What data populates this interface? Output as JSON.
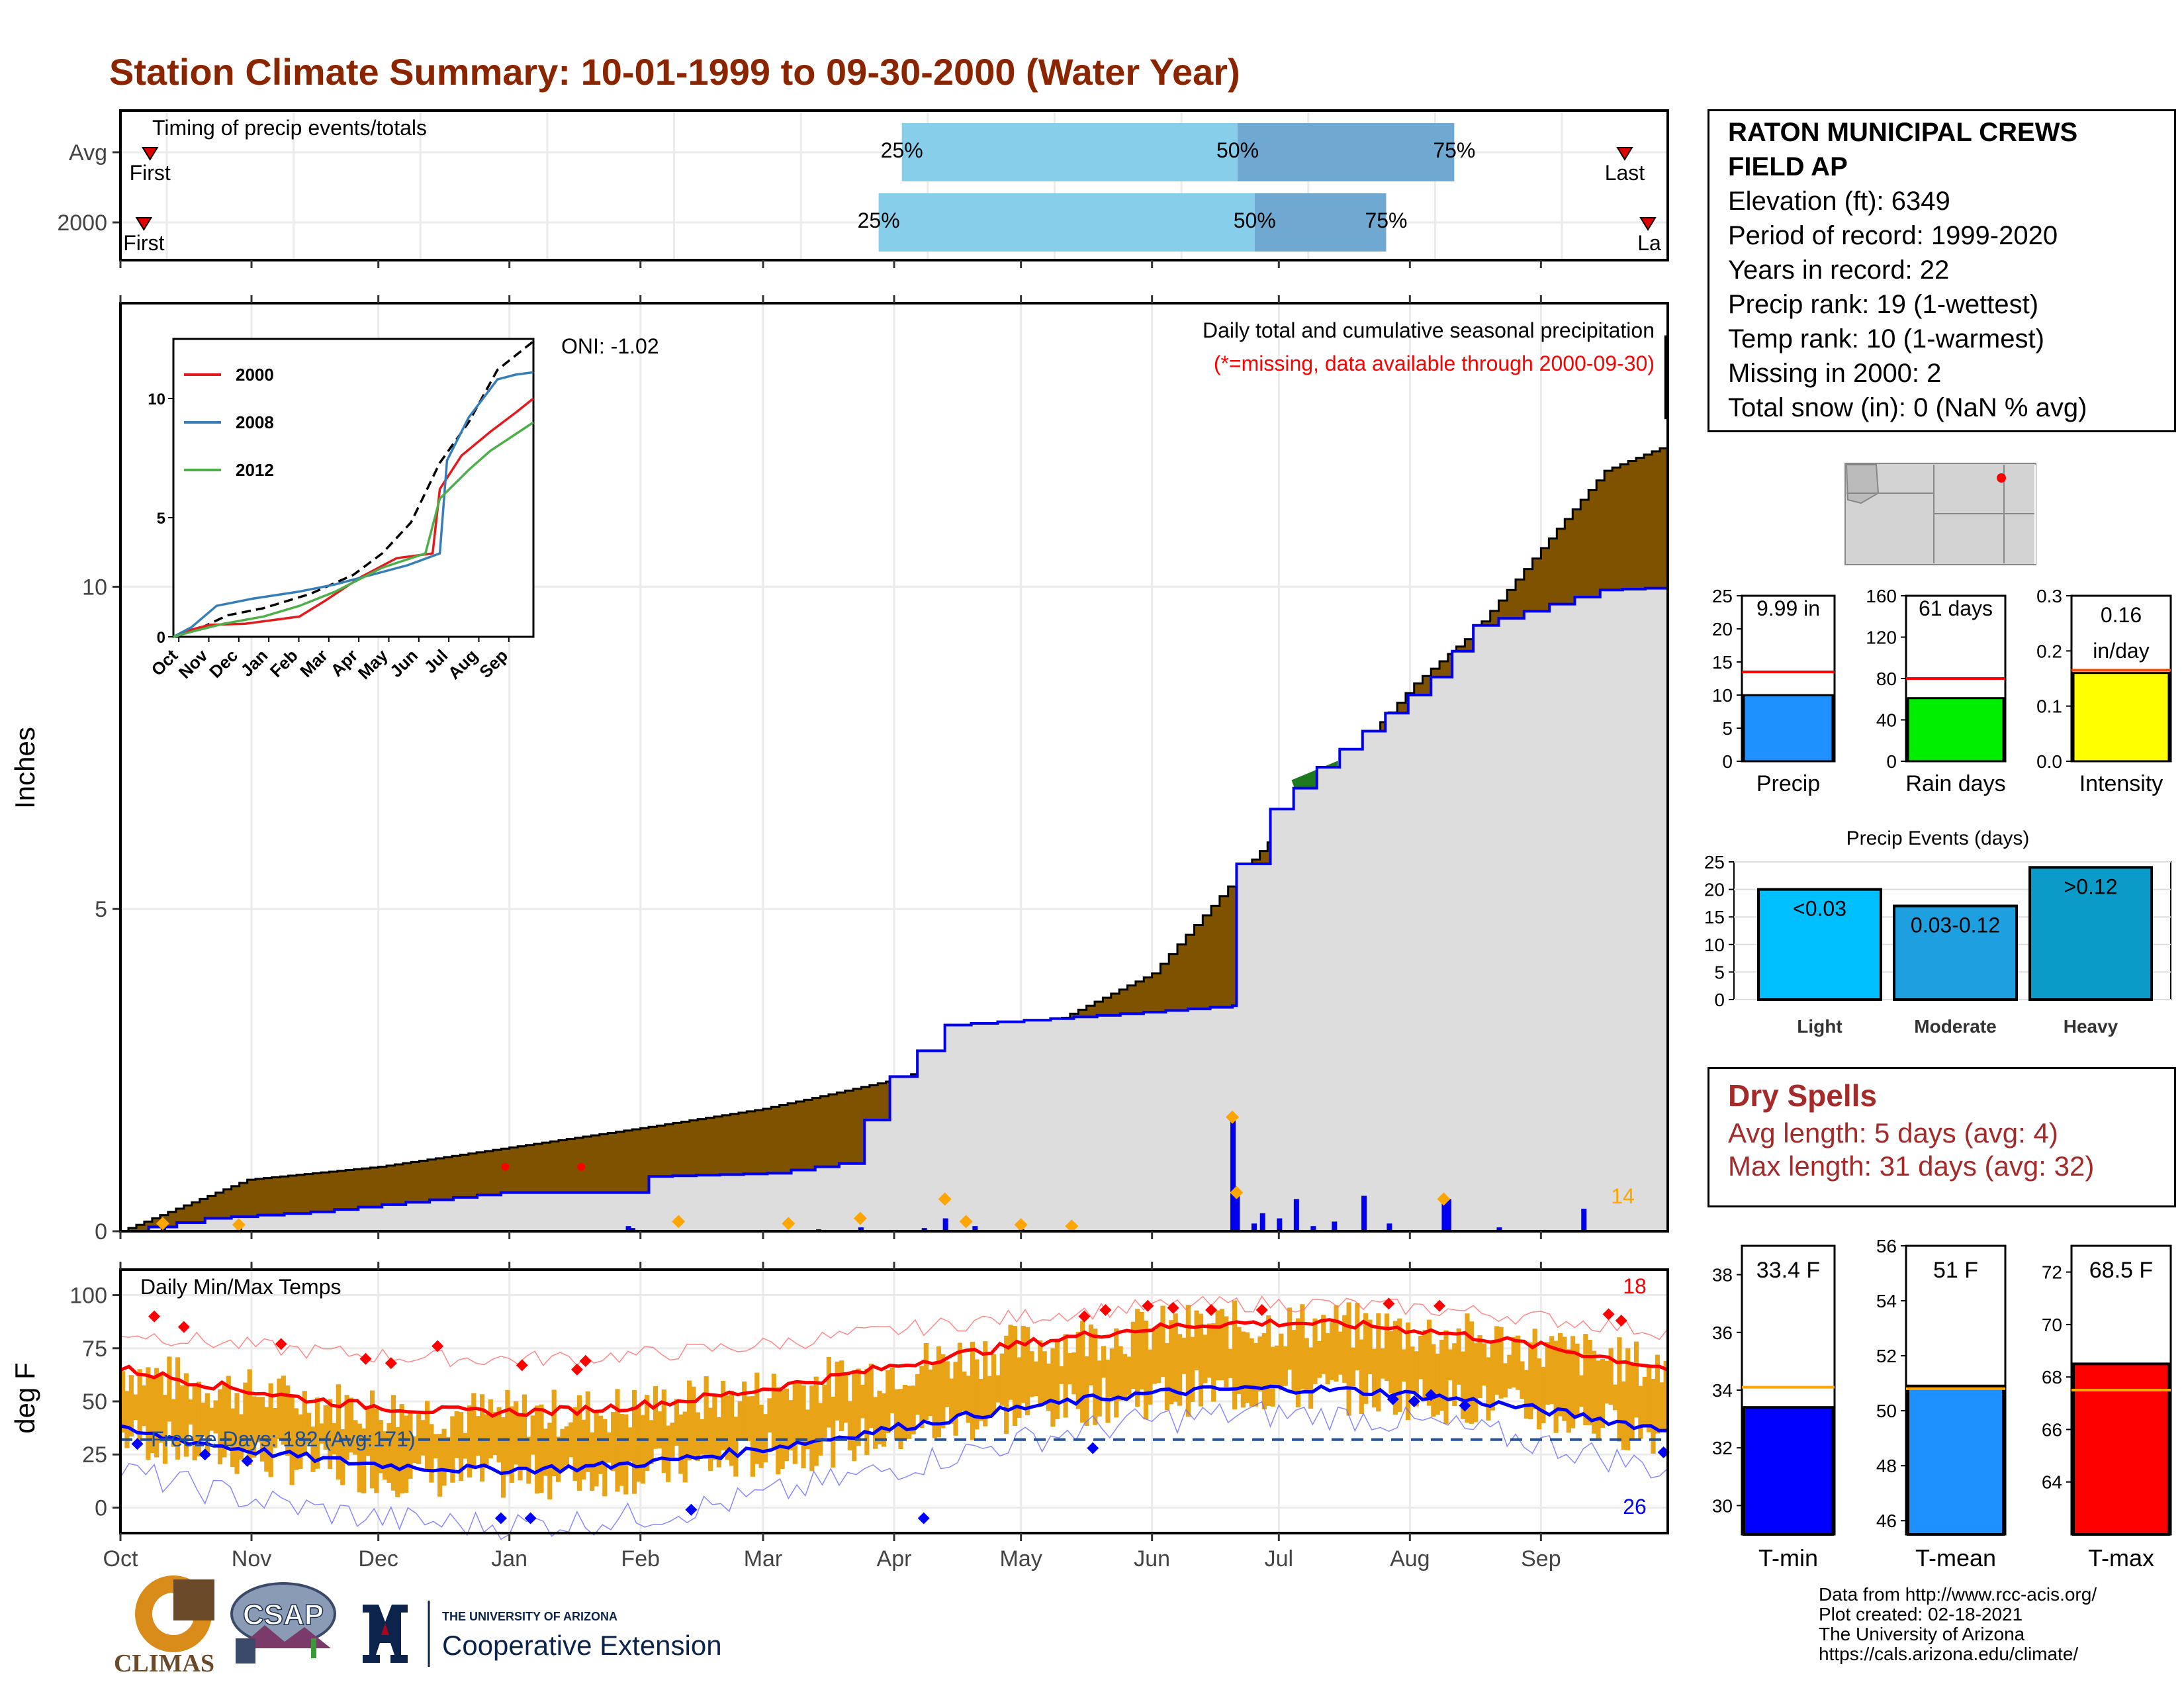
{
  "title": "Station Climate Summary: 10-01-1999 to 09-30-2000 (Water Year)",
  "colors": {
    "title": "#8b2500",
    "cum_current": "#7f5200",
    "cum_avg_line": "#0000ee",
    "grey_fill": "#dddddd",
    "temp_bar": "#e8a317",
    "tmax": "#ff0000",
    "tmin": "#0000ff"
  },
  "timing": {
    "label": "Timing of precip events/totals",
    "rows": [
      {
        "name": "Avg",
        "first_label": "First",
        "last_label": "Last",
        "p25": "25%",
        "p50": "50%",
        "p75": "75%",
        "first": 0.008,
        "last": 0.985,
        "q25": 0.505,
        "q50": 0.722,
        "q75": 0.862
      },
      {
        "name": "2000",
        "first_label": "First",
        "last_label": "La",
        "p25": "25%",
        "p50": "50%",
        "p75": "75%",
        "first": 0.004,
        "last": 1.0,
        "q25": 0.49,
        "q50": 0.733,
        "q75": 0.818
      }
    ]
  },
  "precip_panel": {
    "title": "Daily total and cumulative seasonal precipitation",
    "subtitle": "(*=missing, data available through 2000-09-30)",
    "ylabel": "Inches",
    "oni": "ONI: -1.02",
    "corner_count": "14",
    "yticks": [
      "0",
      "5",
      "10"
    ]
  },
  "temp_panel": {
    "title": "Daily Min/Max Temps",
    "ylabel": "deg F",
    "freeze": "Freeze Days: 182 (Avg:171)",
    "top_count": "18",
    "bottom_count": "26",
    "yticks": [
      "0",
      "25",
      "50",
      "75",
      "100"
    ],
    "months": [
      "Oct",
      "Nov",
      "Dec",
      "Jan",
      "Feb",
      "Mar",
      "Apr",
      "May",
      "Jun",
      "Jul",
      "Aug",
      "Sep"
    ]
  },
  "inset": {
    "legend": [
      "2000",
      "2008",
      "2012"
    ],
    "months": [
      "Oct",
      "Nov",
      "Dec",
      "Jan",
      "Feb",
      "Mar",
      "Apr",
      "May",
      "Jun",
      "Jul",
      "Aug",
      "Sep"
    ],
    "yticks": [
      "0",
      "5",
      "10"
    ]
  },
  "station": {
    "name1": "RATON MUNICIPAL CREWS",
    "name2": "FIELD AP",
    "lines": [
      "Elevation (ft): 6349",
      "Period of record: 1999-2020",
      "Years in record: 22",
      "Precip rank: 19 (1-wettest)",
      "Temp rank: 10 (1-warmest)",
      "Missing in 2000: 2",
      "Total snow (in): 0 (NaN % avg)"
    ]
  },
  "mini_bars": [
    {
      "label": "Precip",
      "value_text": "9.99 in",
      "value": 9.99,
      "avg": 13.5,
      "max": 25,
      "ticks": [
        "0",
        "5",
        "10",
        "15",
        "20",
        "25"
      ],
      "color": "#1e90ff"
    },
    {
      "label": "Rain days",
      "value_text": "61 days",
      "value": 61,
      "avg": 80,
      "max": 160,
      "ticks": [
        "0",
        "40",
        "80",
        "120",
        "160"
      ],
      "color": "#00ee00"
    },
    {
      "label": "Intensity",
      "value_text": "0.16 in/day",
      "value": 0.16,
      "avg": 0.165,
      "max": 0.3,
      "ticks": [
        "0.0",
        "0.1",
        "0.2",
        "0.3"
      ],
      "color": "#ffff00"
    }
  ],
  "events": {
    "title": "Precip Events (days)",
    "ticks": [
      "0",
      "5",
      "10",
      "15",
      "20",
      "25"
    ],
    "bars": [
      {
        "label": "Light",
        "range": "<0.03",
        "value": 20,
        "color": "#00bfff"
      },
      {
        "label": "Moderate",
        "range": "0.03-0.12",
        "value": 17,
        "color": "#1ea0e0"
      },
      {
        "label": "Heavy",
        "range": ">0.12",
        "value": 24,
        "color": "#0a9bc8"
      }
    ]
  },
  "dry_spells": {
    "title": "Dry Spells",
    "avg": "Avg length: 5 days (avg: 4)",
    "max": "Max length: 31 days (avg: 32)"
  },
  "temp_bars": [
    {
      "label": "T-min",
      "value_text": "33.4 F",
      "value": 33.4,
      "avg": 34.1,
      "min": 29,
      "max": 39,
      "ticks": [
        "30",
        "32",
        "34",
        "36",
        "38"
      ],
      "color": "#0000ff"
    },
    {
      "label": "T-mean",
      "value_text": "51 F",
      "value": 50.9,
      "avg": 50.8,
      "min": 45.5,
      "max": 56,
      "ticks": [
        "46",
        "48",
        "50",
        "52",
        "54",
        "56"
      ],
      "color": "#1e90ff"
    },
    {
      "label": "T-max",
      "value_text": "68.5 F",
      "value": 68.5,
      "avg": 67.5,
      "min": 62,
      "max": 73,
      "ticks": [
        "64",
        "66",
        "68",
        "70",
        "72"
      ],
      "color": "#ff0000"
    }
  ],
  "credits": [
    "Data from http://www.rcc-acis.org/",
    "Plot created: 02-18-2021",
    "The University of Arizona",
    "https://cals.arizona.edu/climate/"
  ],
  "logos": {
    "climas": "CLIMAS",
    "csap": "CSAP",
    "ua_small": "THE UNIVERSITY OF ARIZONA",
    "coop": "Cooperative Extension"
  },
  "chart_data": {
    "type": "area",
    "title": "Daily total and cumulative seasonal precipitation",
    "ylabel": "Inches",
    "ylim": [
      0,
      14.4
    ],
    "x": [
      "Oct",
      "Nov",
      "Dec",
      "Jan",
      "Feb",
      "Mar",
      "Apr",
      "May",
      "Jun",
      "Jul",
      "Aug",
      "Sep"
    ],
    "series": [
      {
        "name": "cumulative average",
        "points": [
          [
            0,
            0
          ],
          [
            15,
            0.4
          ],
          [
            30,
            0.8
          ],
          [
            61,
            1.0
          ],
          [
            92,
            1.3
          ],
          [
            123,
            1.6
          ],
          [
            152,
            1.9
          ],
          [
            183,
            2.35
          ],
          [
            213,
            3.0
          ],
          [
            244,
            4.0
          ],
          [
            264,
            5.5
          ],
          [
            275,
            6.3
          ],
          [
            290,
            7.3
          ],
          [
            306,
            8.5
          ],
          [
            320,
            9.3
          ],
          [
            336,
            10.6
          ],
          [
            351,
            11.8
          ],
          [
            366,
            12.2
          ]
        ]
      },
      {
        "name": "2000",
        "points": [
          [
            0,
            0
          ],
          [
            20,
            0.2
          ],
          [
            45,
            0.3
          ],
          [
            90,
            0.6
          ],
          [
            122,
            0.6
          ],
          [
            125,
            0.85
          ],
          [
            153,
            0.9
          ],
          [
            170,
            1.05
          ],
          [
            182,
            2.4
          ],
          [
            195,
            3.2
          ],
          [
            220,
            3.3
          ],
          [
            242,
            3.4
          ],
          [
            263,
            3.5
          ],
          [
            264,
            5.7
          ],
          [
            272,
            6.55
          ],
          [
            283,
            7.2
          ],
          [
            310,
            8.6
          ],
          [
            320,
            9.4
          ],
          [
            350,
            9.95
          ],
          [
            366,
            9.99
          ]
        ]
      }
    ]
  }
}
